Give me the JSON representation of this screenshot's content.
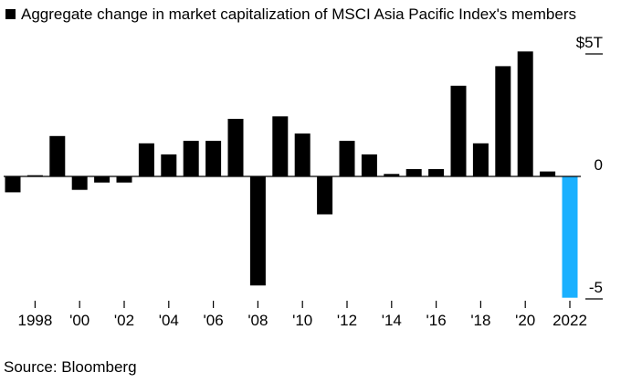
{
  "chart_data": {
    "type": "bar",
    "title": "Aggregate change in market capitalization of MSCI Asia Pacific Index's members",
    "xlabel": "",
    "ylabel": "",
    "ylim": [
      -5,
      5
    ],
    "y_tick_labels": [
      {
        "value": 5,
        "label": "$5T"
      },
      {
        "value": 0,
        "label": "0"
      },
      {
        "value": -5,
        "label": "-5"
      }
    ],
    "x": [
      1997,
      1998,
      1999,
      2000,
      2001,
      2002,
      2003,
      2004,
      2005,
      2006,
      2007,
      2008,
      2009,
      2010,
      2011,
      2012,
      2013,
      2014,
      2015,
      2016,
      2017,
      2018,
      2019,
      2020,
      2021,
      2022
    ],
    "x_tick_labels": [
      {
        "x": 1998,
        "label": "1998"
      },
      {
        "x": 2000,
        "label": "'00"
      },
      {
        "x": 2002,
        "label": "'02"
      },
      {
        "x": 2004,
        "label": "'04"
      },
      {
        "x": 2006,
        "label": "'06"
      },
      {
        "x": 2008,
        "label": "'08"
      },
      {
        "x": 2010,
        "label": "'10"
      },
      {
        "x": 2012,
        "label": "'12"
      },
      {
        "x": 2014,
        "label": "'14"
      },
      {
        "x": 2016,
        "label": "'16"
      },
      {
        "x": 2018,
        "label": "'18"
      },
      {
        "x": 2020,
        "label": "'20"
      },
      {
        "x": 2022,
        "label": "2022"
      }
    ],
    "values": [
      -0.65,
      0.05,
      1.65,
      -0.55,
      -0.25,
      -0.25,
      1.35,
      0.9,
      1.45,
      1.45,
      2.35,
      -4.45,
      2.45,
      1.75,
      -1.55,
      1.45,
      0.9,
      0.1,
      0.3,
      0.3,
      3.7,
      1.35,
      4.5,
      5.1,
      0.2,
      -4.95
    ],
    "colors": {
      "default": "#000000",
      "highlight": "#1ab0ff",
      "highlight_index": 25
    },
    "grid": false,
    "legend": "top-left"
  },
  "source": "Source: Bloomberg"
}
